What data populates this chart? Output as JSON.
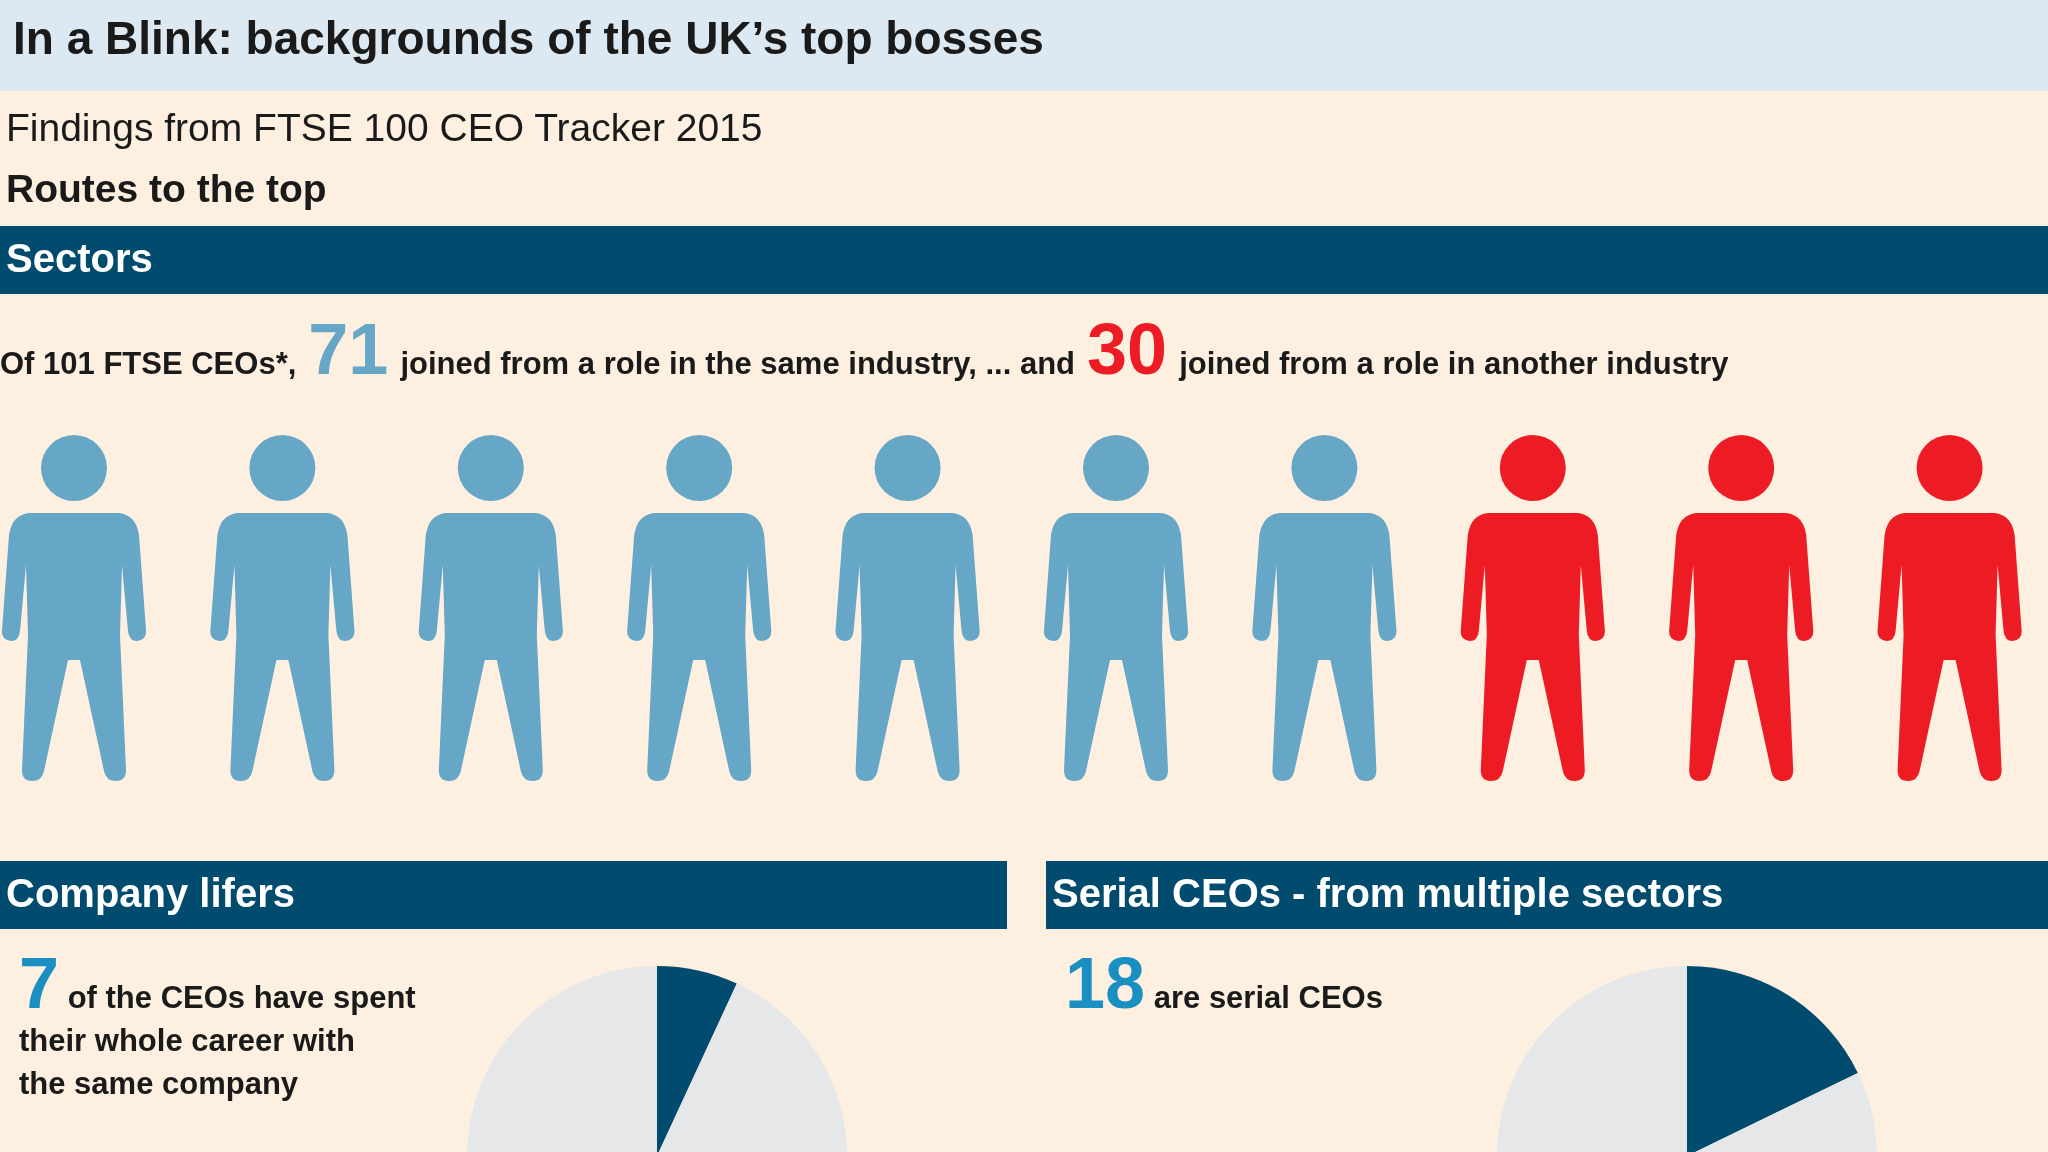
{
  "chart_data": [
    {
      "type": "other",
      "title": "In a Blink: backgrounds of the UK’s top bosses",
      "subtitle": "Findings from FTSE 100 CEO Tracker 2015",
      "annotations": [
        "Routes to the top"
      ]
    },
    {
      "type": "other",
      "title": "Sectors",
      "annotations": [
        "Of 101 FTSE CEOs*,",
        "joined from a role in the same industry, ... and",
        "joined from a role in another industry"
      ],
      "values": [
        71,
        30
      ],
      "colors": [
        "#66a6c6",
        "#ed1c24"
      ],
      "data_labels": true
    },
    {
      "type": "pie",
      "title": "Company lifers",
      "categories": [
        null,
        null
      ],
      "values": [
        6.9,
        93.1
      ],
      "colors": [
        "#004b6e",
        "#e6e7e8"
      ],
      "annotations": [
        "7",
        "of the CEOs have spent",
        "their whole career with",
        "the same company"
      ]
    },
    {
      "type": "pie",
      "title": "Serial CEOs - from multiple sectors",
      "categories": [
        null,
        null
      ],
      "values": [
        17.8,
        82.2
      ],
      "colors": [
        "#004b6e",
        "#e6e7e8"
      ],
      "annotations": [
        "18",
        "are serial CEOs"
      ]
    }
  ]
}
